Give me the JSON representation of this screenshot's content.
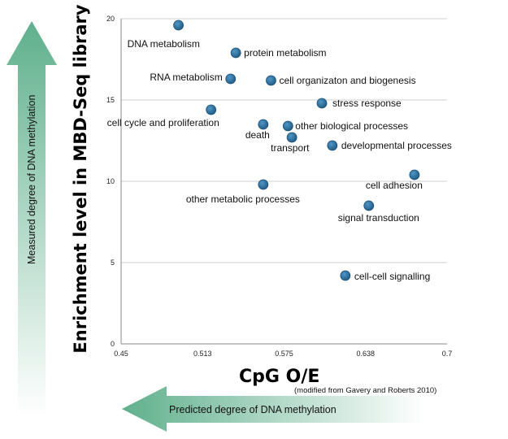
{
  "chart_data": {
    "type": "scatter",
    "xlabel": "CpG O/E",
    "ylabel": "Enrichment level in MBD-Seq library",
    "xlim": [
      0.45,
      0.7
    ],
    "ylim": [
      0,
      20
    ],
    "x_ticks": [
      "0.45",
      "0.513",
      "0.575",
      "0.638",
      "0.7"
    ],
    "y_ticks": [
      "0",
      "5",
      "10",
      "15",
      "20"
    ],
    "grid": "horizontal",
    "points": [
      {
        "label": "DNA metabolism",
        "x": 0.494,
        "y": 19.6
      },
      {
        "label": "protein metabolism",
        "x": 0.538,
        "y": 17.9
      },
      {
        "label": "RNA metabolism",
        "x": 0.534,
        "y": 16.3
      },
      {
        "label": "cell organizaton and biogenesis",
        "x": 0.565,
        "y": 16.2
      },
      {
        "label": "stress response",
        "x": 0.604,
        "y": 14.8
      },
      {
        "label": "cell cycle and proliferation",
        "x": 0.519,
        "y": 14.4
      },
      {
        "label": "death",
        "x": 0.559,
        "y": 13.5
      },
      {
        "label": "other biological processes",
        "x": 0.578,
        "y": 13.4
      },
      {
        "label": "transport",
        "x": 0.581,
        "y": 12.7
      },
      {
        "label": "developmental processes",
        "x": 0.612,
        "y": 12.2
      },
      {
        "label": "cell adhesion",
        "x": 0.675,
        "y": 10.4
      },
      {
        "label": "other metabolic processes",
        "x": 0.559,
        "y": 9.8
      },
      {
        "label": "signal transduction",
        "x": 0.64,
        "y": 8.5
      },
      {
        "label": "cell-cell signalling",
        "x": 0.622,
        "y": 4.2
      }
    ]
  },
  "annotations": {
    "source_note": "(modified from Gavery and Roberts 2010)",
    "vertical_arrow_text": "Measured degree of DNA methylation",
    "horizontal_arrow_text": "Predicted degree of DNA methylation"
  },
  "colors": {
    "marker": "#2b6f9e",
    "arrow_light": "#ffffff",
    "arrow_dark": "#5fb08c"
  }
}
